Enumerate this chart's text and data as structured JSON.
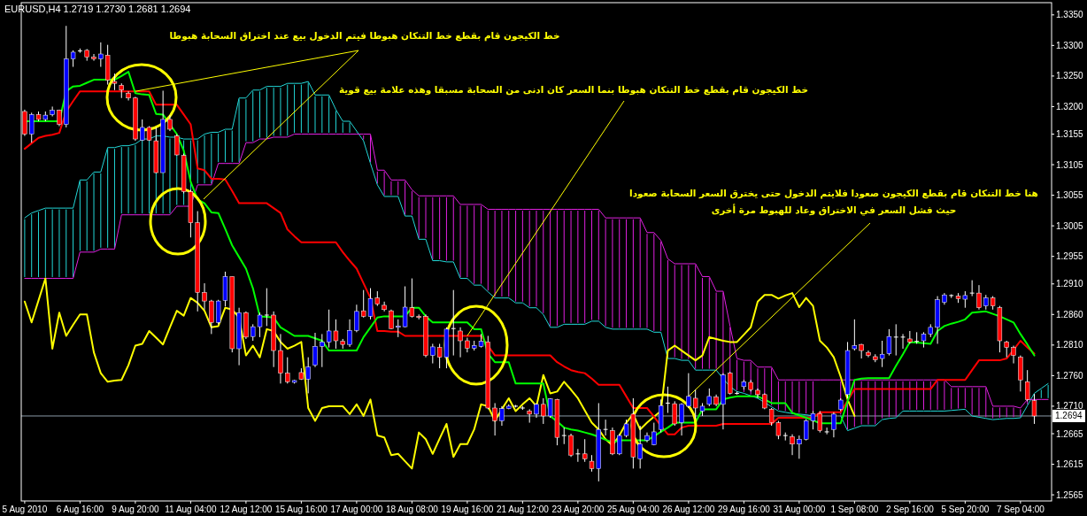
{
  "chart_data": {
    "type": "candlestick",
    "title": "EURUSD,H4  1.2719 1.2730 1.2681 1.2694",
    "annotations": [
      {
        "text": "خط الكيجون قام بقطع خط التنكان هبوطا فيتم الدخول بيع عند اختراق السحابة هبوطا",
        "x": "9 Aug 20:00",
        "y": 1.3225
      },
      {
        "text": "خط الكيجون قام بقطع خط التنكان هبوطا بنما السعر كان ادنى من السحابة مسبقا وهذه علامة بيع قوية",
        "x": "19 Aug 16:00",
        "y": 1.2825
      },
      {
        "text": "هنا خط التنكان قام بقطع الكيجون صعودا فلايتم الدخول حتى يخترق السعر السحابة صعودا\nحيث فشل السعر في الاختراق وعاد للهبوط مرة أخرى",
        "x": "26 Aug 12:00",
        "y": 1.2726
      }
    ],
    "ylim": [
      1.2555,
      1.337
    ],
    "yticks": [
      {
        "value": 1.335,
        "label": "1.3350"
      },
      {
        "value": 1.33,
        "label": "1.3300"
      },
      {
        "value": 1.325,
        "label": "1.3250"
      },
      {
        "value": 1.32,
        "label": "1.3200"
      },
      1.3155,
      1.3105,
      1.3055,
      1.3005,
      1.2955,
      {
        "value": 1.291,
        "label": "1.2910"
      },
      {
        "value": 1.286,
        "label": "1.2860"
      },
      {
        "value": 1.281,
        "label": "1.2810"
      },
      {
        "value": 1.276,
        "label": "1.2760"
      },
      {
        "value": 1.271,
        "label": "1.2710"
      },
      1.2665,
      1.2615,
      1.2565
    ],
    "ref_lines": [
      {
        "axis": "y",
        "value": 1.2694,
        "label": "1.2694",
        "color": "#8a9aa6"
      }
    ],
    "categories": [
      "5 Aug 2010",
      null,
      null,
      null,
      null,
      null,
      null,
      null,
      "6 Aug 16:00",
      null,
      null,
      null,
      null,
      null,
      null,
      null,
      "9 Aug 20:00",
      null,
      null,
      null,
      null,
      null,
      null,
      null,
      "11 Aug 04:00",
      null,
      null,
      null,
      null,
      null,
      null,
      null,
      "12 Aug 12:00",
      null,
      null,
      null,
      null,
      null,
      null,
      null,
      "15 Aug 16:00",
      null,
      null,
      null,
      null,
      null,
      null,
      null,
      "17 Aug 00:00",
      null,
      null,
      null,
      null,
      null,
      null,
      null,
      "18 Aug 08:00",
      null,
      null,
      null,
      null,
      null,
      null,
      null,
      "19 Aug 16:00",
      null,
      null,
      null,
      null,
      null,
      null,
      null,
      "21 Aug 12:00",
      null,
      null,
      null,
      null,
      null,
      null,
      null,
      "23 Aug 20:00",
      null,
      null,
      null,
      null,
      null,
      null,
      null,
      "25 Aug 04:00",
      null,
      null,
      null,
      null,
      null,
      null,
      null,
      "26 Aug 12:00",
      null,
      null,
      null,
      null,
      null,
      null,
      null,
      "29 Aug 16:00",
      null,
      null,
      null,
      null,
      null,
      null,
      null,
      "31 Aug 00:00",
      null,
      null,
      null,
      null,
      null,
      null,
      null,
      "1 Sep 08:00",
      null,
      null,
      null,
      null,
      null,
      null,
      null,
      "2 Sep 16:00",
      null,
      null,
      null,
      null,
      null,
      null,
      null,
      "5 Sep 20:00",
      null,
      null,
      null,
      null,
      null,
      null,
      null,
      "7 Sep 04:00",
      null,
      null,
      null,
      null
    ],
    "ohlc": [
      [
        1.3192,
        1.3195,
        1.3152,
        1.3155
      ],
      [
        1.3155,
        1.319,
        1.3141,
        1.3187
      ],
      [
        1.3187,
        1.3192,
        1.3176,
        1.3179
      ],
      [
        1.3179,
        1.3192,
        1.3176,
        1.3186
      ],
      [
        1.3187,
        1.32,
        1.3184,
        1.3194
      ],
      [
        1.3194,
        1.3195,
        1.3168,
        1.3171
      ],
      [
        1.3171,
        1.3332,
        1.3166,
        1.3278
      ],
      [
        1.3278,
        1.3292,
        1.3265,
        1.3289
      ],
      [
        1.329,
        1.3295,
        1.3288,
        1.3291
      ],
      [
        1.3292,
        1.3294,
        1.3275,
        1.3281
      ],
      [
        1.3281,
        1.3286,
        1.3275,
        1.3278
      ],
      [
        1.3278,
        1.3305,
        1.3265,
        1.3286
      ],
      [
        1.3284,
        1.3301,
        1.3236,
        1.3243
      ],
      [
        1.3241,
        1.3254,
        1.3227,
        1.3238
      ],
      [
        1.3235,
        1.3238,
        1.3214,
        1.3227
      ],
      [
        1.3222,
        1.3225,
        1.321,
        1.3214
      ],
      [
        1.3214,
        1.3216,
        1.3144,
        1.3147
      ],
      [
        1.3145,
        1.3179,
        1.3144,
        1.3166
      ],
      [
        1.3166,
        1.3168,
        1.3144,
        1.3145
      ],
      [
        1.3144,
        1.3166,
        1.3091,
        1.3092
      ],
      [
        1.3092,
        1.3226,
        1.3092,
        1.3179
      ],
      [
        1.3179,
        1.3186,
        1.316,
        1.3163
      ],
      [
        1.3152,
        1.3155,
        1.312,
        1.3121
      ],
      [
        1.312,
        1.3123,
        1.3058,
        1.3061
      ],
      [
        1.3061,
        1.3064,
        1.2986,
        1.301
      ],
      [
        1.301,
        1.3029,
        1.2865,
        1.2896
      ],
      [
        1.2896,
        1.2911,
        1.2868,
        1.2882
      ],
      [
        1.2882,
        1.2884,
        1.2828,
        1.2847
      ],
      [
        1.2847,
        1.2884,
        1.2844,
        1.2882
      ],
      [
        1.2883,
        1.293,
        1.2873,
        1.2922
      ],
      [
        1.2922,
        1.2922,
        1.2798,
        1.2804
      ],
      [
        1.2804,
        1.2871,
        1.2777,
        1.2863
      ],
      [
        1.2863,
        1.2865,
        1.282,
        1.2823
      ],
      [
        1.2824,
        1.2844,
        1.2817,
        1.284
      ],
      [
        1.284,
        1.2863,
        1.2823,
        1.2859
      ],
      [
        1.2859,
        1.2903,
        1.2841,
        1.2859
      ],
      [
        1.2859,
        1.2865,
        1.2774,
        1.2801
      ],
      [
        1.2801,
        1.2828,
        1.2747,
        1.2764
      ],
      [
        1.2764,
        1.279,
        1.2747,
        1.275
      ],
      [
        1.2749,
        1.2753,
        1.2747,
        1.2752
      ],
      [
        1.2765,
        1.2772,
        1.2753,
        1.2754
      ],
      [
        1.2754,
        1.279,
        1.2731,
        1.2774
      ],
      [
        1.2777,
        1.283,
        1.2774,
        1.2808
      ],
      [
        1.2808,
        1.2828,
        1.2774,
        1.2815
      ],
      [
        1.2815,
        1.2868,
        1.2806,
        1.2833
      ],
      [
        1.2833,
        1.2852,
        1.2804,
        1.2817
      ],
      [
        1.2816,
        1.282,
        1.2804,
        1.2811
      ],
      [
        1.2811,
        1.2852,
        1.2807,
        1.2834
      ],
      [
        1.2834,
        1.2876,
        1.2831,
        1.2865
      ],
      [
        1.2866,
        1.29,
        1.2855,
        1.2857
      ],
      [
        1.2857,
        1.2903,
        1.2852,
        1.2886
      ],
      [
        1.2887,
        1.2898,
        1.2874,
        1.2877
      ],
      [
        1.2875,
        1.2881,
        1.2865,
        1.2868
      ],
      [
        1.2866,
        1.2868,
        1.2836,
        1.2837
      ],
      [
        1.2839,
        1.2852,
        1.2823,
        1.2841
      ],
      [
        1.284,
        1.2906,
        1.2839,
        1.2872
      ],
      [
        1.2871,
        1.2919,
        1.2855,
        1.2857
      ],
      [
        1.2857,
        1.286,
        1.2852,
        1.2855
      ],
      [
        1.2857,
        1.286,
        1.279,
        1.2793
      ],
      [
        1.2793,
        1.2812,
        1.278,
        1.2807
      ],
      [
        1.2806,
        1.2812,
        1.2772,
        1.279
      ],
      [
        1.279,
        1.2839,
        1.2772,
        1.2836
      ],
      [
        1.2836,
        1.29,
        1.2793,
        1.2837
      ],
      [
        1.2833,
        1.2839,
        1.279,
        1.2817
      ],
      [
        1.2817,
        1.2822,
        1.2798,
        1.2805
      ],
      [
        1.2805,
        1.2817,
        1.2801,
        1.2809
      ],
      [
        1.2808,
        1.2828,
        1.2806,
        1.2816
      ],
      [
        1.2815,
        1.2825,
        1.2705,
        1.2707
      ],
      [
        1.2707,
        1.2715,
        1.2662,
        1.2686
      ],
      [
        1.2686,
        1.271,
        1.2678,
        1.2706
      ],
      [
        1.2706,
        1.2713,
        1.2705,
        1.271
      ],
      [
        1.271,
        1.2712,
        1.2708,
        1.271
      ],
      [
        1.2707,
        1.271,
        1.2704,
        1.2707
      ],
      [
        1.2702,
        1.2705,
        1.2683,
        1.2697
      ],
      [
        1.2697,
        1.2715,
        1.2691,
        1.2713
      ],
      [
        1.2713,
        1.2723,
        1.2681,
        1.2694
      ],
      [
        1.2694,
        1.2723,
        1.2691,
        1.2722
      ],
      [
        1.2721,
        1.2722,
        1.2646,
        1.2659
      ],
      [
        1.2662,
        1.2675,
        1.2648,
        1.2662
      ],
      [
        1.2662,
        1.2665,
        1.2627,
        1.263
      ],
      [
        1.2632,
        1.264,
        1.2619,
        1.2632
      ],
      [
        1.2632,
        1.2656,
        1.2619,
        1.2624
      ],
      [
        1.262,
        1.263,
        1.2603,
        1.2608
      ],
      [
        1.2608,
        1.2715,
        1.2587,
        1.2672
      ],
      [
        1.2672,
        1.2688,
        1.2662,
        1.2672
      ],
      [
        1.267,
        1.2675,
        1.263,
        1.2632
      ],
      [
        1.2632,
        1.2665,
        1.263,
        1.2662
      ],
      [
        1.2662,
        1.2688,
        1.2659,
        1.2681
      ],
      [
        1.2697,
        1.2723,
        1.2608,
        1.2627
      ],
      [
        1.2624,
        1.2678,
        1.2608,
        1.2648
      ],
      [
        1.2654,
        1.2667,
        1.2651,
        1.2662
      ],
      [
        1.2647,
        1.2683,
        1.2646,
        1.2668
      ],
      [
        1.2672,
        1.2721,
        1.2667,
        1.2711
      ],
      [
        1.2715,
        1.2742,
        1.2699,
        1.2715
      ],
      [
        1.2714,
        1.2718,
        1.2678,
        1.2681
      ],
      [
        1.2683,
        1.2715,
        1.2662,
        1.2713
      ],
      [
        1.271,
        1.2764,
        1.2707,
        1.2726
      ],
      [
        1.2723,
        1.2737,
        1.2689,
        1.2707
      ],
      [
        1.2702,
        1.2715,
        1.2694,
        1.271
      ],
      [
        1.2713,
        1.2739,
        1.271,
        1.2726
      ],
      [
        1.2725,
        1.2729,
        1.271,
        1.2713
      ],
      [
        1.2713,
        1.2764,
        1.2672,
        1.2761
      ],
      [
        1.2764,
        1.2766,
        1.2729,
        1.2731
      ],
      [
        1.2731,
        1.2734,
        1.2729,
        1.2731
      ],
      [
        1.2742,
        1.2753,
        1.2737,
        1.275
      ],
      [
        1.2749,
        1.2753,
        1.2734,
        1.2737
      ],
      [
        1.2736,
        1.2739,
        1.2723,
        1.2729
      ],
      [
        1.2729,
        1.2731,
        1.2705,
        1.2707
      ],
      [
        1.2705,
        1.2707,
        1.2678,
        1.2683
      ],
      [
        1.2683,
        1.2686,
        1.2656,
        1.2662
      ],
      [
        1.2662,
        1.2667,
        1.2654,
        1.2662
      ],
      [
        1.266,
        1.2664,
        1.263,
        1.2648
      ],
      [
        1.2648,
        1.2662,
        1.2624,
        1.2656
      ],
      [
        1.2656,
        1.2689,
        1.2654,
        1.2686
      ],
      [
        1.2686,
        1.2702,
        1.2672,
        1.2698
      ],
      [
        1.2698,
        1.2702,
        1.2667,
        1.267
      ],
      [
        1.2669,
        1.2675,
        1.2664,
        1.2668
      ],
      [
        1.2672,
        1.27,
        1.2659,
        1.2697
      ],
      [
        1.2705,
        1.2723,
        1.2702,
        1.272
      ],
      [
        1.2729,
        1.2815,
        1.2723,
        1.2801
      ],
      [
        1.2804,
        1.2852,
        1.2801,
        1.2809
      ],
      [
        1.2811,
        1.2812,
        1.2788,
        1.2801
      ],
      [
        1.2798,
        1.2801,
        1.279,
        1.2793
      ],
      [
        1.2791,
        1.2795,
        1.2782,
        1.2786
      ],
      [
        1.2788,
        1.2817,
        1.2774,
        1.2795
      ],
      [
        1.2796,
        1.2836,
        1.2793,
        1.2824
      ],
      [
        1.2823,
        1.2844,
        1.2793,
        1.2823
      ],
      [
        1.2823,
        1.2828,
        1.2804,
        1.2823
      ],
      [
        1.282,
        1.2833,
        1.2812,
        1.2815
      ],
      [
        1.2816,
        1.2831,
        1.2812,
        1.2816
      ],
      [
        1.2817,
        1.2831,
        1.2806,
        1.2828
      ],
      [
        1.2828,
        1.2844,
        1.2823,
        1.2839
      ],
      [
        1.2839,
        1.289,
        1.2812,
        1.2884
      ],
      [
        1.288,
        1.2895,
        1.2876,
        1.2892
      ],
      [
        1.2891,
        1.2893,
        1.2887,
        1.2891
      ],
      [
        1.289,
        1.2895,
        1.2879,
        1.2886
      ],
      [
        1.2885,
        1.2898,
        1.2871,
        1.2891
      ],
      [
        1.2895,
        1.2916,
        1.289,
        1.2895
      ],
      [
        1.2895,
        1.2908,
        1.2868,
        1.2871
      ],
      [
        1.2874,
        1.2892,
        1.2868,
        1.2887
      ],
      [
        1.2887,
        1.289,
        1.2868,
        1.2874
      ],
      [
        1.2871,
        1.2874,
        1.2798,
        1.2817
      ],
      [
        1.2815,
        1.2817,
        1.279,
        1.2806
      ],
      [
        1.2806,
        1.2809,
        1.278,
        1.2793
      ],
      [
        1.279,
        1.2793,
        1.2734,
        1.2753
      ],
      [
        1.275,
        1.2769,
        1.2718,
        1.2721
      ],
      [
        1.2719,
        1.273,
        1.2681,
        1.2694
      ],
      null,
      null
    ],
    "series": [
      {
        "type": "line",
        "color": "#22d8d8",
        "values": [
          1.3018,
          1.3026,
          1.303,
          1.3034,
          1.3034,
          1.3034,
          1.3034,
          1.3034,
          1.308,
          1.308,
          1.3093,
          1.3093,
          1.3133,
          1.3133,
          1.3136,
          1.3136,
          1.3139,
          1.3147,
          1.3147,
          1.3152,
          1.3152,
          1.315,
          1.315,
          1.3147,
          1.3147,
          1.3147,
          1.3155,
          1.3158,
          1.3158,
          1.3163,
          1.3163,
          1.3214,
          1.3214,
          1.3227,
          1.3227,
          1.3233,
          1.3233,
          1.3233,
          1.3238,
          1.3238,
          1.3238,
          1.3241,
          1.3219,
          1.3219,
          1.3219,
          1.3195,
          1.3176,
          1.3176,
          1.316,
          1.3144,
          1.3107,
          1.3072,
          1.3053,
          1.3053,
          1.3053,
          1.3021,
          1.3021,
          1.2983,
          1.2983,
          1.2948,
          1.2948,
          1.2946,
          1.2946,
          1.2919,
          1.2919,
          1.2908,
          1.2908,
          1.2897,
          1.2887,
          1.2887,
          1.2887,
          1.2879,
          1.2879,
          1.2871,
          1.2871,
          1.286,
          1.2839,
          1.2839,
          1.2844,
          1.2844,
          1.2844,
          1.2844,
          1.2849,
          1.2849,
          1.2839,
          1.2836,
          1.2836,
          1.2836,
          1.2836,
          1.2836,
          1.2836,
          1.2831,
          1.2831,
          1.2788,
          1.2788,
          1.2785,
          1.2785,
          1.2769,
          1.2769,
          1.2769,
          1.2769,
          1.2755,
          1.2742,
          1.2734,
          1.2731,
          1.2727,
          1.2723,
          1.2716,
          1.2709,
          1.2702,
          1.27,
          1.2698,
          1.2697,
          1.2696,
          1.2694,
          null,
          null,
          null,
          1.2694,
          1.267,
          1.2674,
          1.2678,
          1.2678,
          1.2678,
          1.2688,
          1.269,
          1.2691,
          1.2702,
          1.2702,
          1.2702,
          1.2702,
          1.2702,
          1.2702,
          1.2702,
          1.2703,
          1.2704,
          1.2705,
          1.2694,
          1.2692,
          1.269,
          1.2688,
          1.2689,
          1.269,
          1.269,
          1.2691,
          1.2711,
          1.2731,
          1.2739,
          1.2747
        ]
      },
      {
        "type": "line",
        "color": "#e020e0",
        "values": [
          1.2919,
          1.2919,
          1.2919,
          1.2919,
          1.2919,
          1.2919,
          1.2919,
          1.2919,
          1.2962,
          1.2962,
          1.2962,
          1.2967,
          1.2967,
          1.2967,
          1.3023,
          1.3023,
          1.3023,
          1.3023,
          1.3023,
          1.3023,
          1.3023,
          1.3023,
          1.3037,
          1.3037,
          1.3037,
          1.3072,
          1.3072,
          1.3072,
          1.3107,
          1.3107,
          1.3107,
          1.3107,
          1.3141,
          1.3141,
          1.3147,
          1.3147,
          1.315,
          1.315,
          1.315,
          1.3155,
          1.3155,
          1.3155,
          1.3155,
          1.3155,
          1.3155,
          1.3155,
          1.3155,
          1.3155,
          1.3155,
          1.3155,
          1.3155,
          1.3096,
          1.3096,
          1.308,
          1.308,
          1.308,
          1.3064,
          1.3054,
          1.3054,
          1.3054,
          1.3054,
          1.3054,
          1.3054,
          1.304,
          1.304,
          1.304,
          1.304,
          1.3032,
          1.3032,
          1.3032,
          1.3032,
          1.3032,
          1.3032,
          1.3032,
          1.3032,
          1.3032,
          1.3032,
          1.3032,
          1.3032,
          1.3032,
          1.3032,
          1.3032,
          1.3032,
          1.3032,
          1.3018,
          1.3018,
          1.3018,
          1.3018,
          1.3018,
          1.3018,
          1.2994,
          1.2994,
          1.2981,
          1.2951,
          1.2943,
          1.2943,
          1.2943,
          1.2943,
          1.2922,
          1.2922,
          1.2898,
          1.2898,
          1.2841,
          1.2788,
          1.2785,
          1.2785,
          1.2774,
          1.2774,
          1.2774,
          1.2753,
          1.2753,
          1.2753,
          1.2753,
          1.2753,
          1.2753,
          1.2753,
          1.2753,
          1.2753,
          1.2753,
          1.2753,
          1.2753,
          1.2753,
          1.2753,
          1.2753,
          1.2753,
          1.2753,
          1.2753,
          1.2753,
          1.2753,
          1.2753,
          1.2753,
          1.2753,
          1.2753,
          1.2753,
          1.2742,
          1.2742,
          1.2742,
          1.2742,
          1.2742,
          1.2742,
          1.271,
          1.271,
          1.271,
          1.271,
          1.2707,
          1.2721,
          1.2721,
          1.2721,
          1.2721
        ]
      },
      {
        "type": "line",
        "color": "#ffff00",
        "values": [
          1.2881,
          1.2847,
          1.2883,
          1.2919,
          1.2804,
          1.2863,
          1.2825,
          1.2843,
          1.286,
          1.286,
          1.2798,
          1.2764,
          1.275,
          1.2752,
          1.2753,
          1.2777,
          1.2809,
          1.2812,
          1.2833,
          1.2822,
          1.2811,
          1.2839,
          1.2866,
          1.2858,
          1.2887,
          1.2879,
          1.2866,
          1.2839,
          1.2841,
          1.2871,
          1.2868,
          1.2855,
          1.2793,
          1.2809,
          1.279,
          1.2836,
          1.2833,
          1.2815,
          1.2804,
          1.2809,
          1.2815,
          1.2707,
          1.2686,
          1.2707,
          1.271,
          1.271,
          1.271,
          1.2697,
          1.2713,
          1.2694,
          1.2721,
          1.2662,
          1.2659,
          1.263,
          1.2632,
          1.262,
          1.2608,
          1.2667,
          1.2656,
          1.2632,
          1.2657,
          1.2681,
          1.2627,
          1.2648,
          1.2648,
          1.2672,
          1.2713,
          1.271,
          1.2686,
          1.2705,
          1.2723,
          1.2702,
          1.2713,
          1.2723,
          1.271,
          1.2761,
          1.2731,
          1.2734,
          1.275,
          1.2737,
          1.2723,
          1.2703,
          1.2683,
          1.2672,
          1.2656,
          1.2646,
          1.2662,
          1.2683,
          1.2697,
          1.2672,
          1.2683,
          1.2693,
          1.2702,
          1.2801,
          1.2809,
          1.2801,
          1.2793,
          1.2785,
          1.2793,
          1.2823,
          1.282,
          1.2817,
          1.2815,
          1.2815,
          1.2827,
          1.2839,
          1.2881,
          1.2892,
          1.2892,
          1.2886,
          1.2891,
          1.2895,
          1.2872,
          1.2887,
          1.2874,
          1.2817,
          1.2806,
          1.279,
          1.2758,
          1.2721,
          1.2694,
          null,
          null,
          null,
          null,
          null,
          null,
          null,
          null,
          null,
          null,
          null,
          null,
          null,
          null,
          null,
          null,
          null,
          null,
          null,
          null,
          null,
          null,
          null,
          null,
          null,
          null,
          null,
          null
        ]
      },
      {
        "type": "line",
        "color": "#ff0000",
        "values": [
          1.3131,
          1.314,
          1.3149,
          1.3152,
          1.3154,
          1.3157,
          1.3192,
          1.3209,
          1.3225,
          1.3225,
          1.3225,
          1.3225,
          1.3225,
          1.3225,
          1.3225,
          1.3225,
          1.3225,
          1.3225,
          1.3225,
          1.3203,
          1.3203,
          1.3203,
          1.3203,
          1.3187,
          1.3171,
          1.3099,
          1.3096,
          1.3082,
          1.3082,
          1.3081,
          1.3062,
          1.3042,
          1.3042,
          1.3042,
          1.3042,
          1.3042,
          1.3034,
          1.3026,
          1.2999,
          1.2988,
          1.2978,
          1.2978,
          1.2978,
          1.2978,
          1.2978,
          1.2978,
          1.2962,
          1.2948,
          1.2935,
          1.2911,
          1.2887,
          1.2833,
          1.2833,
          1.2832,
          1.2832,
          1.2825,
          1.2825,
          1.2825,
          1.2825,
          1.2825,
          1.2825,
          1.2825,
          1.2825,
          1.2825,
          1.2825,
          1.2825,
          1.2825,
          1.2809,
          1.2793,
          1.2793,
          1.2793,
          1.2793,
          1.2793,
          1.2793,
          1.2793,
          1.2793,
          1.2793,
          1.2782,
          1.2775,
          1.2769,
          1.2766,
          1.2764,
          1.2755,
          1.2745,
          1.2745,
          1.2745,
          1.2745,
          1.2726,
          1.2707,
          1.2707,
          1.2707,
          1.2693,
          1.2678,
          1.2664,
          1.2664,
          1.2675,
          1.2678,
          1.2678,
          1.2678,
          1.2678,
          1.2678,
          1.2681,
          1.2681,
          1.2681,
          1.2681,
          1.2681,
          1.2681,
          1.2681,
          1.2681,
          1.2691,
          1.2691,
          1.2691,
          1.2691,
          1.2691,
          1.2691,
          1.27,
          1.27,
          1.27,
          1.27,
          1.2719,
          1.2738,
          1.2738,
          1.2738,
          1.2738,
          1.2738,
          1.2738,
          1.2738,
          1.2738,
          1.2738,
          1.2738,
          1.2738,
          1.2738,
          1.2753,
          1.2753,
          1.2753,
          1.2753,
          1.2753,
          1.2769,
          1.2785,
          1.2785,
          1.2785,
          1.2785,
          1.2788,
          1.2802,
          1.2817,
          1.2806,
          1.2796,
          null,
          null
        ]
      },
      {
        "type": "line",
        "color": "#00ff00",
        "values": [
          1.3176,
          1.3176,
          1.3176,
          1.3176,
          1.3176,
          1.3176,
          1.3225,
          1.3233,
          1.3234,
          1.3239,
          1.3244,
          1.3244,
          1.3244,
          1.3244,
          1.325,
          1.3257,
          1.3222,
          1.322,
          1.3219,
          1.3188,
          1.3187,
          1.3171,
          1.3155,
          1.3128,
          1.3077,
          1.3048,
          1.3042,
          1.3027,
          1.3026,
          1.3,
          1.2973,
          1.2954,
          1.2935,
          1.2903,
          1.2857,
          1.2856,
          1.2855,
          1.2839,
          1.2832,
          1.2825,
          1.2825,
          1.2825,
          1.2821,
          1.2817,
          1.2801,
          1.2801,
          1.2801,
          1.2801,
          1.2801,
          1.2823,
          1.2839,
          1.2855,
          1.2857,
          1.2857,
          1.2857,
          1.2857,
          1.2871,
          1.2871,
          1.2857,
          1.2847,
          1.2847,
          1.2847,
          1.2847,
          1.2847,
          1.2847,
          1.2836,
          1.2836,
          1.2796,
          1.2782,
          1.2782,
          1.2782,
          1.2747,
          1.2747,
          1.2747,
          1.2747,
          1.2747,
          1.2694,
          1.2685,
          1.2675,
          1.2672,
          1.267,
          1.2667,
          1.2664,
          1.266,
          1.2655,
          1.2651,
          1.2654,
          1.2654,
          1.2654,
          1.2654,
          1.2654,
          1.2661,
          1.2668,
          1.2675,
          1.2683,
          1.2683,
          1.2683,
          1.2683,
          1.2705,
          1.2705,
          1.2705,
          1.2721,
          1.2724,
          1.2726,
          1.2726,
          1.2726,
          1.2726,
          1.2721,
          1.2715,
          1.2715,
          1.2715,
          1.2699,
          1.2695,
          1.2691,
          1.2687,
          1.2682,
          1.2682,
          1.2682,
          1.2682,
          1.2718,
          1.2753,
          1.2755,
          1.2756,
          1.2756,
          1.2756,
          1.2756,
          1.2776,
          1.2795,
          1.2815,
          1.2814,
          1.2813,
          1.2812,
          1.2833,
          1.2841,
          1.2845,
          1.2848,
          1.2852,
          1.2863,
          1.2864,
          1.2865,
          1.2861,
          1.2857,
          1.2852,
          1.2847,
          1.2828,
          1.2811,
          1.2793,
          null,
          null
        ]
      }
    ]
  }
}
